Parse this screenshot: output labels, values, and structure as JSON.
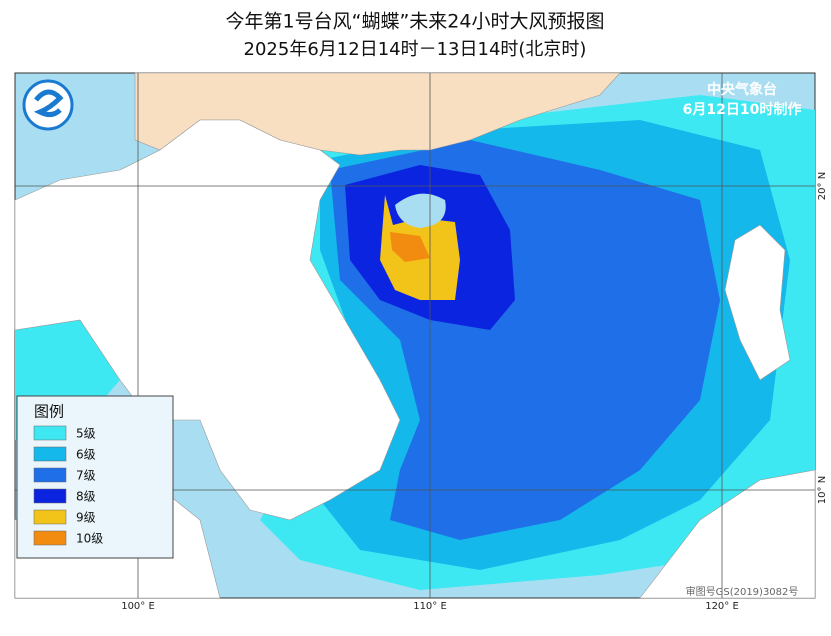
{
  "header": {
    "title": "今年第1号台风“蝴蝶”未来24小时大风预报图",
    "subtitle": "2025年6月12日14时－13日14时(北京时)"
  },
  "agency": {
    "name": "中央气象台",
    "issued": "6月12日10时制作"
  },
  "legend": {
    "title": "图例",
    "items": [
      {
        "label": "5级",
        "color": "#3de8f2"
      },
      {
        "label": "6级",
        "color": "#14b8ea"
      },
      {
        "label": "7级",
        "color": "#1f6fe8"
      },
      {
        "label": "8级",
        "color": "#0b24e0"
      },
      {
        "label": "9级",
        "color": "#f2c318"
      },
      {
        "label": "10级",
        "color": "#f28c10"
      }
    ]
  },
  "axes": {
    "x_labels": [
      "100° E",
      "110° E",
      "120° E"
    ],
    "y_labels": [
      "20° N",
      "10° N"
    ]
  },
  "footer": {
    "approval": "审图号GS(2019)3082号"
  }
}
